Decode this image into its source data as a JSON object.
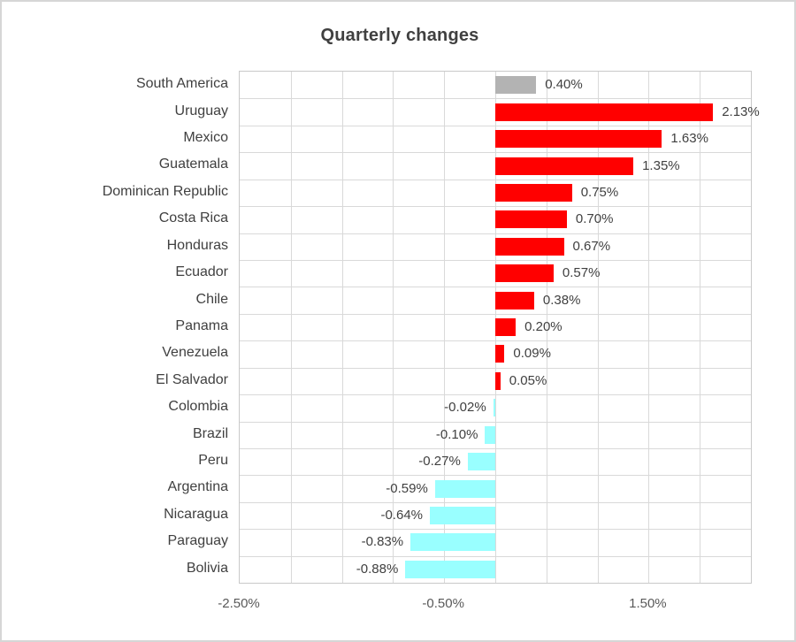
{
  "title": "Quarterly changes",
  "colors": {
    "positive_bar": "#FF0000",
    "negative_bar": "#99FFFF",
    "total_bar": "#B3B3B3",
    "gridline": "#D9D9D9",
    "plot_border": "#C9C9C9",
    "title_text": "#404040",
    "label_text": "#404040",
    "axis_text": "#595959"
  },
  "chart_data": {
    "type": "bar",
    "orientation": "horizontal",
    "title": "Quarterly changes",
    "categories": [
      "South America",
      "Uruguay",
      "Mexico",
      "Guatemala",
      "Dominican Republic",
      "Costa Rica",
      "Honduras",
      "Ecuador",
      "Chile",
      "Panama",
      "Venezuela",
      "El Salvador",
      "Colombia",
      "Brazil",
      "Peru",
      "Argentina",
      "Nicaragua",
      "Paraguay",
      "Bolivia"
    ],
    "values": [
      0.4,
      2.13,
      1.63,
      1.35,
      0.75,
      0.7,
      0.67,
      0.57,
      0.38,
      0.2,
      0.09,
      0.05,
      -0.02,
      -0.1,
      -0.27,
      -0.59,
      -0.64,
      -0.83,
      -0.88
    ],
    "data_labels": [
      "0.40%",
      "2.13%",
      "1.63%",
      "1.35%",
      "0.75%",
      "0.70%",
      "0.67%",
      "0.57%",
      "0.38%",
      "0.20%",
      "0.09%",
      "0.05%",
      "-0.02%",
      "-0.10%",
      "-0.27%",
      "-0.59%",
      "-0.64%",
      "-0.83%",
      "-0.88%"
    ],
    "bar_colors": [
      "#B3B3B3",
      "#FF0000",
      "#FF0000",
      "#FF0000",
      "#FF0000",
      "#FF0000",
      "#FF0000",
      "#FF0000",
      "#FF0000",
      "#FF0000",
      "#FF0000",
      "#FF0000",
      "#99FFFF",
      "#99FFFF",
      "#99FFFF",
      "#99FFFF",
      "#99FFFF",
      "#99FFFF",
      "#99FFFF"
    ],
    "xlabel": "",
    "ylabel": "",
    "xlim": [
      -2.5,
      2.5
    ],
    "x_tick_values": [
      -2.5,
      -0.5,
      1.5
    ],
    "x_tick_labels": [
      "-2.50%",
      "-0.50%",
      "1.50%"
    ],
    "gridline_interval": 0.5,
    "grid": true,
    "legend": false
  }
}
